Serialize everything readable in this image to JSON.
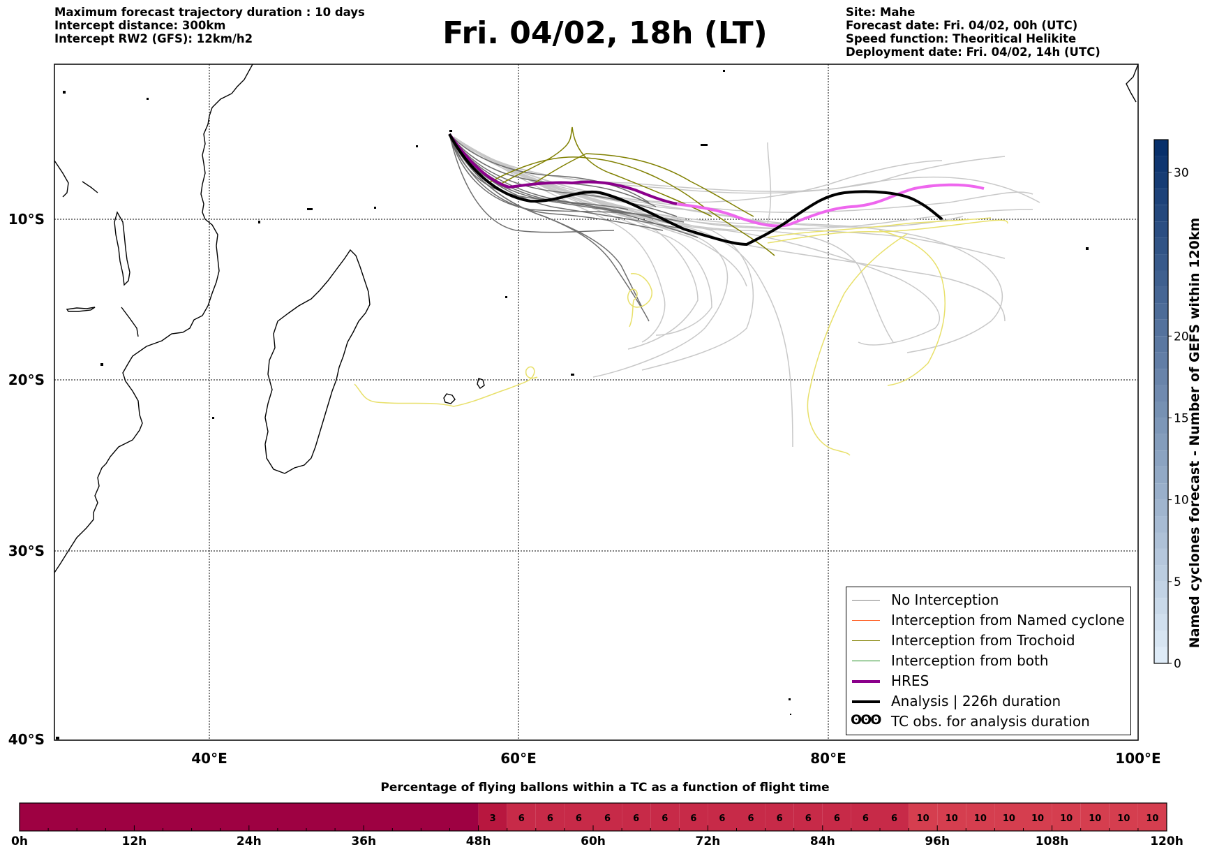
{
  "header": {
    "left": [
      "Maximum forecast trajectory duration : 10 days",
      "Intercept distance: 300km",
      "Intercept RW2 (GFS):  12km/h2"
    ],
    "title": "Fri. 04/02, 18h (LT)",
    "right": [
      "Site: Mahe",
      "Forecast date: Fri. 04/02, 00h (UTC)",
      "Speed function: Theoritical Helikite",
      "Deployment date: Fri. 04/02, 14h (UTC)"
    ]
  },
  "map": {
    "lon_labels": [
      "40°E",
      "60°E",
      "80°E",
      "100°E"
    ],
    "lat_labels": [
      "10°S",
      "20°S",
      "30°S",
      "40°S"
    ],
    "lon_range": [
      30,
      100
    ],
    "lat_range": [
      -40,
      -1
    ],
    "grid": true
  },
  "legend": {
    "items": [
      {
        "label": "No Interception",
        "color": "#808080"
      },
      {
        "label": "Interception from Named cyclone",
        "color": "#ff5a1e"
      },
      {
        "label": "Interception from Trochoid",
        "color": "#808000"
      },
      {
        "label": "Interception from both",
        "color": "#1e8c1e"
      },
      {
        "label": "HRES",
        "color": "#8b008b"
      },
      {
        "label": "Analysis | 226h duration",
        "color": "#000000"
      },
      {
        "label": "TC obs. for analysis duration",
        "glyph": "ʘʘʘ"
      }
    ]
  },
  "colorbar": {
    "label": "Named cyclones forecast - Number of GEFS within 120km",
    "ticks": [
      "0",
      "5",
      "10",
      "15",
      "20",
      "30"
    ],
    "tick_values": [
      0,
      5,
      10,
      15,
      20,
      30
    ],
    "range": [
      0,
      32
    ]
  },
  "bottom_bar": {
    "title": "Percentage of flying ballons within a TC as a function of flight time",
    "time_labels": [
      "0h",
      "12h",
      "24h",
      "36h",
      "48h",
      "60h",
      "72h",
      "84h",
      "96h",
      "108h",
      "120h"
    ],
    "segments": [
      {
        "from_h": 0,
        "to_h": 48,
        "value": "",
        "color": "#9e0142"
      },
      {
        "from_h": 48,
        "to_h": 51,
        "value": "3",
        "color": "#b8173f"
      },
      {
        "from_h": 51,
        "to_h": 54,
        "value": "6",
        "color": "#c72a48"
      },
      {
        "from_h": 54,
        "to_h": 57,
        "value": "6",
        "color": "#c72a48"
      },
      {
        "from_h": 57,
        "to_h": 60,
        "value": "6",
        "color": "#c72a48"
      },
      {
        "from_h": 60,
        "to_h": 63,
        "value": "6",
        "color": "#c72a48"
      },
      {
        "from_h": 63,
        "to_h": 66,
        "value": "6",
        "color": "#c72a48"
      },
      {
        "from_h": 66,
        "to_h": 69,
        "value": "6",
        "color": "#c72a48"
      },
      {
        "from_h": 69,
        "to_h": 72,
        "value": "6",
        "color": "#c72a48"
      },
      {
        "from_h": 72,
        "to_h": 75,
        "value": "6",
        "color": "#c72a48"
      },
      {
        "from_h": 75,
        "to_h": 78,
        "value": "6",
        "color": "#c72a48"
      },
      {
        "from_h": 78,
        "to_h": 81,
        "value": "6",
        "color": "#c72a48"
      },
      {
        "from_h": 81,
        "to_h": 84,
        "value": "6",
        "color": "#c72a48"
      },
      {
        "from_h": 84,
        "to_h": 87,
        "value": "6",
        "color": "#c72a48"
      },
      {
        "from_h": 87,
        "to_h": 90,
        "value": "6",
        "color": "#c72a48"
      },
      {
        "from_h": 90,
        "to_h": 93,
        "value": "6",
        "color": "#c72a48"
      },
      {
        "from_h": 93,
        "to_h": 96,
        "value": "10",
        "color": "#d53e4f"
      },
      {
        "from_h": 96,
        "to_h": 99,
        "value": "10",
        "color": "#d53e4f"
      },
      {
        "from_h": 99,
        "to_h": 102,
        "value": "10",
        "color": "#d53e4f"
      },
      {
        "from_h": 102,
        "to_h": 105,
        "value": "10",
        "color": "#d53e4f"
      },
      {
        "from_h": 105,
        "to_h": 108,
        "value": "10",
        "color": "#d53e4f"
      },
      {
        "from_h": 108,
        "to_h": 111,
        "value": "10",
        "color": "#d53e4f"
      },
      {
        "from_h": 111,
        "to_h": 114,
        "value": "10",
        "color": "#d53e4f"
      },
      {
        "from_h": 114,
        "to_h": 117,
        "value": "10",
        "color": "#d53e4f"
      },
      {
        "from_h": 117,
        "to_h": 120,
        "value": "10",
        "color": "#d53e4f"
      }
    ]
  }
}
